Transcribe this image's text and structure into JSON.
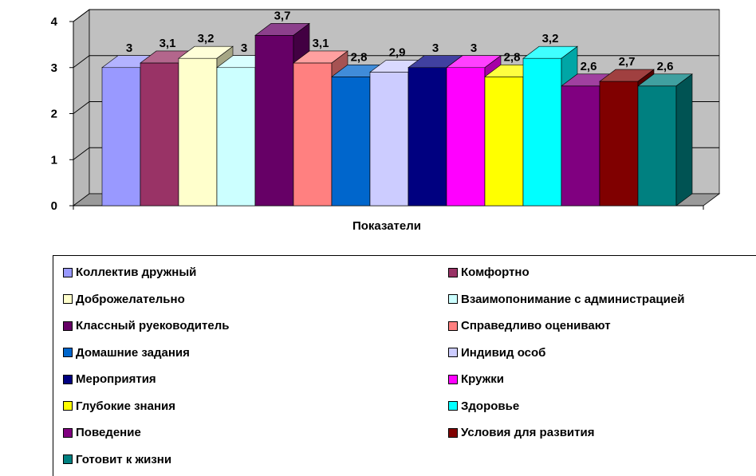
{
  "chart_data": {
    "type": "bar",
    "xlabel": "Показатели",
    "ylabel": "",
    "ylim": [
      0,
      4
    ],
    "yticks": [
      "0",
      "1",
      "2",
      "3",
      "4"
    ],
    "grid": true,
    "legend_position": "bottom",
    "series": [
      {
        "name": "Коллектив дружный",
        "value": 3,
        "label": "3",
        "color": "#9999ff"
      },
      {
        "name": "Комфортно",
        "value": 3.1,
        "label": "3,1",
        "color": "#993366"
      },
      {
        "name": "Доброжелательно",
        "value": 3.2,
        "label": "3,2",
        "color": "#ffffcc"
      },
      {
        "name": "Взаимопонимание с администрацией",
        "value": 3,
        "label": "3",
        "color": "#ccffff"
      },
      {
        "name": "Классный рyеководитель",
        "value": 3.7,
        "label": "3,7",
        "color": "#660066"
      },
      {
        "name": "Справедливо оценивают",
        "value": 3.1,
        "label": "3,1",
        "color": "#ff8080"
      },
      {
        "name": "Домашние задания",
        "value": 2.8,
        "label": "2,8",
        "color": "#0066cc"
      },
      {
        "name": "Индивид особ",
        "value": 2.9,
        "label": "2,9",
        "color": "#ccccff"
      },
      {
        "name": "Мероприятия",
        "value": 3,
        "label": "3",
        "color": "#000080"
      },
      {
        "name": "Кружки",
        "value": 3,
        "label": "3",
        "color": "#ff00ff"
      },
      {
        "name": "Глубокие знания",
        "value": 2.8,
        "label": "2,8",
        "color": "#ffff00"
      },
      {
        "name": "Здоровье",
        "value": 3.2,
        "label": "3,2",
        "color": "#00ffff"
      },
      {
        "name": "Поведение",
        "value": 2.6,
        "label": "2,6",
        "color": "#800080"
      },
      {
        "name": "Условия для развития",
        "value": 2.7,
        "label": "2,7",
        "color": "#800000"
      },
      {
        "name": "Готовит к жизни",
        "value": 2.6,
        "label": "2,6",
        "color": "#008080"
      }
    ]
  }
}
